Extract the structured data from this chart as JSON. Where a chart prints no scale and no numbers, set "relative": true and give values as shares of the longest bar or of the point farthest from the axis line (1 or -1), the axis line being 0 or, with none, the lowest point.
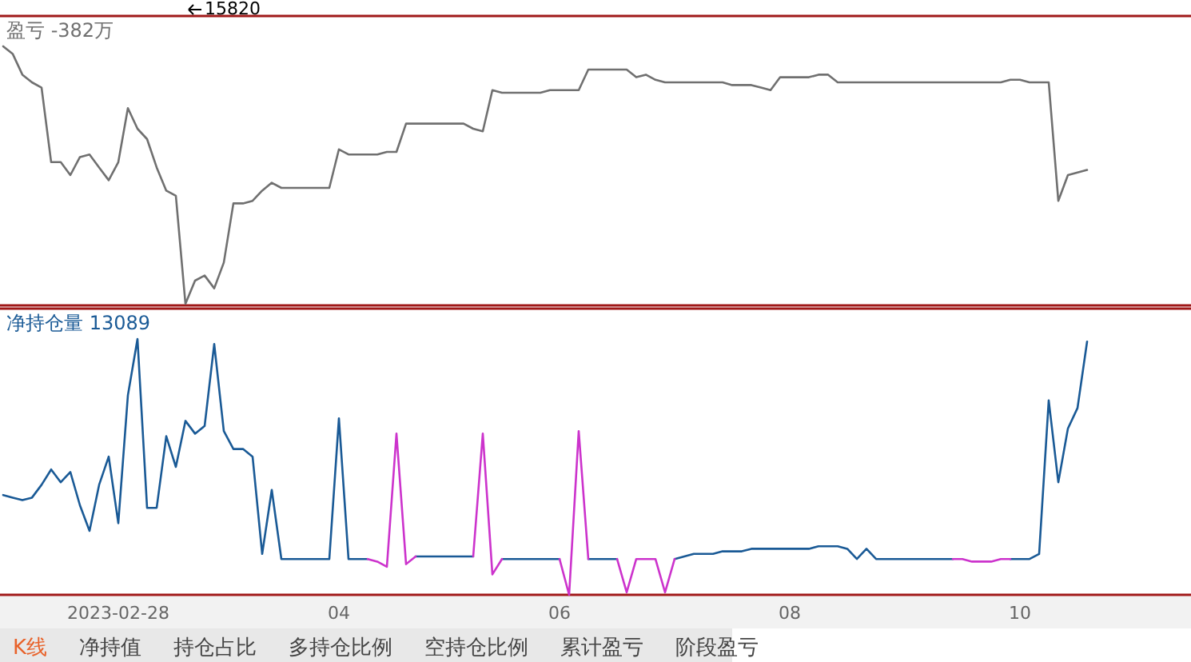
{
  "chart_data": [
    {
      "type": "line",
      "title": "盈亏 -382万",
      "annotations": [
        "15820"
      ],
      "relative": true,
      "tick_labels": false,
      "categories": [
        null,
        null,
        null,
        null,
        null,
        null,
        null,
        null,
        null,
        null,
        null,
        null,
        null,
        null,
        null,
        null,
        null,
        null,
        null,
        null,
        null,
        null,
        null,
        null,
        null,
        null,
        null,
        null,
        null,
        null,
        null,
        null,
        null,
        null,
        null,
        null,
        null,
        null,
        null,
        null,
        null,
        null,
        null,
        null,
        null,
        null,
        null,
        null,
        null,
        null,
        null,
        null,
        null,
        null,
        null,
        null,
        null,
        null,
        null,
        null,
        null,
        null,
        null,
        null,
        null,
        null,
        null,
        null,
        null,
        null,
        null,
        null,
        null,
        null,
        null,
        null,
        null,
        null,
        null,
        null,
        null,
        null,
        null,
        null,
        null,
        null,
        null,
        null,
        null,
        null,
        null,
        null,
        null,
        null,
        null,
        null,
        null,
        null,
        null,
        null,
        null,
        null,
        null,
        null,
        null,
        null,
        null,
        null,
        null,
        null,
        null,
        null,
        null,
        null,
        null,
        null,
        null,
        null,
        null,
        null,
        null,
        null,
        null,
        null
      ],
      "series": [
        {
          "color": "#707070",
          "values": [
            1.0,
            0.97,
            0.89,
            0.86,
            0.84,
            0.55,
            0.55,
            0.5,
            0.57,
            0.58,
            0.53,
            0.48,
            0.55,
            0.76,
            0.68,
            0.64,
            0.53,
            0.44,
            0.42,
            0,
            0.09,
            0.11,
            0.06,
            0.16,
            0.39,
            0.39,
            0.4,
            0.44,
            0.47,
            0.45,
            0.45,
            0.45,
            0.45,
            0.45,
            0.45,
            0.6,
            0.58,
            0.58,
            0.58,
            0.58,
            0.59,
            0.59,
            0.7,
            0.7,
            0.7,
            0.7,
            0.7,
            0.7,
            0.7,
            0.68,
            0.67,
            0.83,
            0.82,
            0.82,
            0.82,
            0.82,
            0.82,
            0.83,
            0.83,
            0.83,
            0.83,
            0.91,
            0.91,
            0.91,
            0.91,
            0.91,
            0.88,
            0.89,
            0.87,
            0.86,
            0.86,
            0.86,
            0.86,
            0.86,
            0.86,
            0.86,
            0.85,
            0.85,
            0.85,
            0.84,
            0.83,
            0.88,
            0.88,
            0.88,
            0.88,
            0.89,
            0.89,
            0.86,
            0.86,
            0.86,
            0.86,
            0.86,
            0.86,
            0.86,
            0.86,
            0.86,
            0.86,
            0.86,
            0.86,
            0.86,
            0.86,
            0.86,
            0.86,
            0.86,
            0.86,
            0.87,
            0.87,
            0.86,
            0.86,
            0.86,
            0.4,
            0.5,
            0.51,
            0.52,
            null,
            null,
            null,
            null,
            null,
            null,
            null,
            null,
            null,
            null
          ]
        }
      ]
    },
    {
      "type": "line",
      "title": "净持仓量 13089",
      "relative": true,
      "tick_labels": "x",
      "categories": [
        null,
        null,
        null,
        null,
        null,
        null,
        null,
        null,
        null,
        null,
        null,
        null,
        "2023-02-28",
        null,
        null,
        null,
        null,
        null,
        null,
        null,
        null,
        null,
        null,
        null,
        null,
        null,
        null,
        null,
        null,
        null,
        null,
        null,
        null,
        null,
        null,
        "04",
        null,
        null,
        null,
        null,
        null,
        null,
        null,
        null,
        null,
        null,
        null,
        null,
        null,
        null,
        null,
        null,
        null,
        null,
        null,
        null,
        null,
        null,
        "06",
        null,
        null,
        null,
        null,
        null,
        null,
        null,
        null,
        null,
        null,
        null,
        null,
        null,
        null,
        null,
        null,
        null,
        null,
        null,
        null,
        null,
        null,
        null,
        "08",
        null,
        null,
        null,
        null,
        null,
        null,
        null,
        null,
        null,
        null,
        null,
        null,
        null,
        null,
        null,
        null,
        null,
        null,
        null,
        null,
        null,
        null,
        null,
        "10",
        null,
        null,
        null,
        null,
        null,
        null,
        null,
        null,
        null,
        null,
        null,
        null,
        null,
        null,
        null,
        null,
        null
      ],
      "series": [
        {
          "color": "#1a5a96",
          "values": [
            0.39,
            0.38,
            0.37,
            0.38,
            0.43,
            0.49,
            0.44,
            0.48,
            0.35,
            0.25,
            0.43,
            0.54,
            0.28,
            0.78,
            1.0,
            0.34,
            0.34,
            0.62,
            0.5,
            0.68,
            0.63,
            0.66,
            0.98,
            0.64,
            0.57,
            0.57,
            0.54,
            0.16,
            0.41,
            0.14,
            0.14,
            0.14,
            0.14,
            0.14,
            0.14,
            0.69,
            0.14,
            0.14,
            0.14,
            null,
            null,
            null,
            null,
            0.15,
            0.15,
            0.15,
            0.15,
            0.15,
            0.15,
            0.15,
            null,
            null,
            0.14,
            0.14,
            0.14,
            0.14,
            0.14,
            0.14,
            0.14,
            null,
            null,
            0.14,
            0.14,
            0.14,
            0.14,
            null,
            null,
            null,
            null,
            null,
            0.14,
            0.15,
            0.16,
            0.16,
            0.16,
            0.17,
            0.17,
            0.17,
            0.18,
            0.18,
            0.18,
            0.18,
            0.18,
            0.18,
            0.18,
            0.19,
            0.19,
            0.19,
            0.18,
            0.14,
            0.18,
            0.14,
            0.14,
            0.14,
            0.14,
            0.14,
            0.14,
            0.14,
            0.14,
            0.14,
            null,
            null,
            null,
            null,
            null,
            0.14,
            0.14,
            0.14,
            0.16,
            0.76,
            0.44,
            0.65,
            0.73,
            0.99,
            null,
            null,
            null,
            null,
            null,
            null,
            null,
            null,
            null,
            null
          ]
        },
        {
          "color": "#cc33cc",
          "values": [
            null,
            null,
            null,
            null,
            null,
            null,
            null,
            null,
            null,
            null,
            null,
            null,
            null,
            null,
            null,
            null,
            null,
            null,
            null,
            null,
            null,
            null,
            null,
            null,
            null,
            null,
            null,
            null,
            null,
            null,
            null,
            null,
            null,
            null,
            null,
            null,
            null,
            null,
            0.14,
            0.13,
            0.11,
            0.63,
            0.12,
            0.15,
            null,
            null,
            null,
            null,
            null,
            0.15,
            0.63,
            0.08,
            0.14,
            null,
            null,
            null,
            null,
            null,
            0.14,
            0,
            0.64,
            0.14,
            null,
            null,
            0.14,
            0.01,
            0.14,
            0.14,
            0.14,
            0.01,
            0.14,
            null,
            null,
            null,
            null,
            null,
            null,
            null,
            null,
            null,
            null,
            null,
            null,
            null,
            null,
            null,
            null,
            null,
            null,
            null,
            null,
            null,
            null,
            null,
            null,
            null,
            null,
            null,
            null,
            0.14,
            0.14,
            0.13,
            0.13,
            0.13,
            0.14,
            0.14,
            null,
            null,
            null,
            null,
            null,
            null,
            null,
            null,
            null,
            null,
            null,
            null,
            null,
            null,
            null,
            null,
            null,
            null
          ]
        }
      ]
    },
    {
      "type": "other",
      "annotations": [
        "K线",
        "净持值",
        "持仓占比",
        "多持仓比例",
        "空持仓比例",
        "累计盈亏",
        "阶段盈亏"
      ]
    }
  ]
}
